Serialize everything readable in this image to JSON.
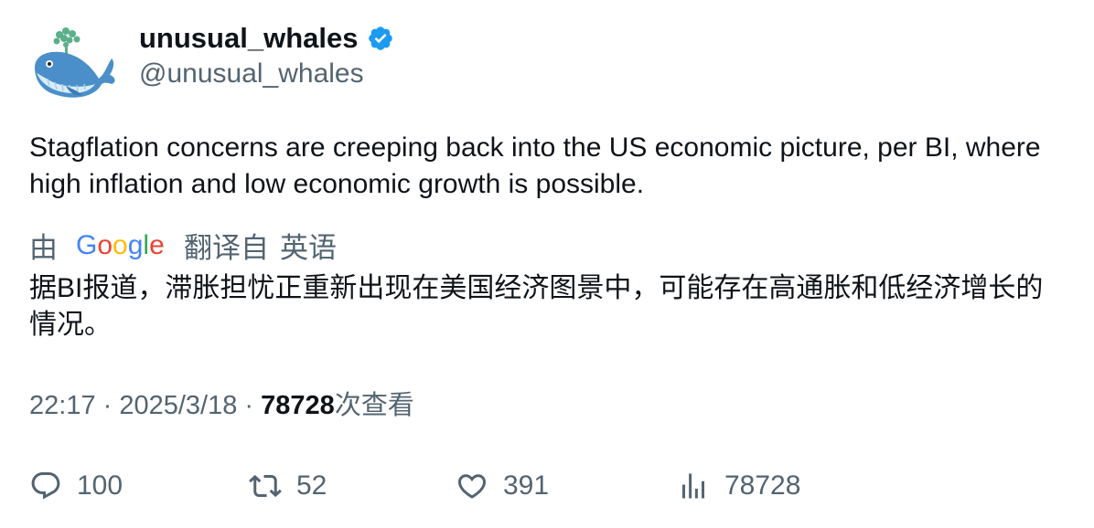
{
  "author": {
    "display_name": "unusual_whales",
    "handle": "@unusual_whales",
    "verified": true,
    "avatar_icon": "whale-icon",
    "verified_color": "#1d9bf0"
  },
  "tweet": {
    "text": "Stagflation concerns are creeping back into the US economic picture, per BI, where high inflation and low economic growth is possible."
  },
  "translation": {
    "by_label": "由",
    "provider_logo": "Google",
    "translated_from_label": "翻译自",
    "source_language": "英语",
    "translated_text": "据BI报道，滞胀担忧正重新出现在美国经济图景中，可能存在高通胀和低经济增长的情况。"
  },
  "meta": {
    "time": "22:17",
    "separator": " · ",
    "date": "2025/3/18",
    "views_count": "78728",
    "views_label": "次查看"
  },
  "actions": {
    "reply_count": "100",
    "retweet_count": "52",
    "like_count": "391",
    "views_count": "78728"
  },
  "colors": {
    "text_primary": "#0f1419",
    "text_secondary": "#536471",
    "accent": "#1d9bf0"
  }
}
